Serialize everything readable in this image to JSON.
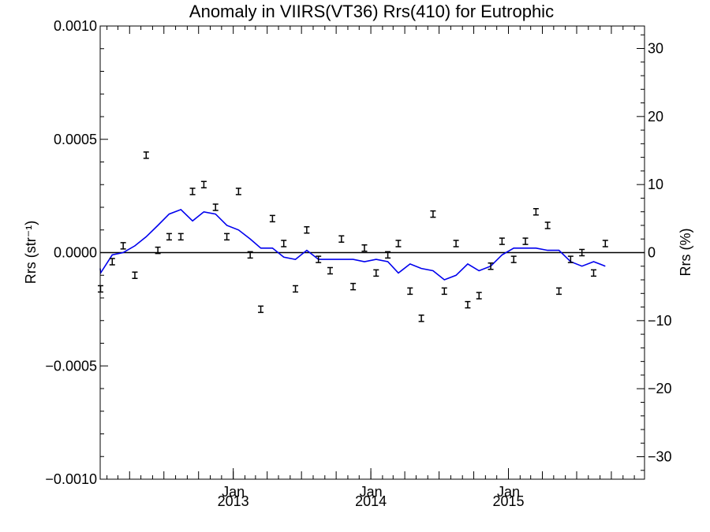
{
  "chart_data": {
    "type": "line",
    "title": "Anomaly in VIIRS(VT36) Rrs(410) for Eutrophic",
    "ylabel_left": "Rrs (str⁻¹)",
    "ylabel_right": "Rrs (%)",
    "xlabel": "",
    "x_range": [
      "2012-01-14",
      "2015-12-28"
    ],
    "ylim_left": [
      -0.001,
      0.001
    ],
    "ylim_right": [
      -33.3,
      33.3
    ],
    "x_ticks": [
      {
        "date": "2013-01-01",
        "month": "Jan",
        "year": "2013"
      },
      {
        "date": "2014-01-01",
        "month": "Jan",
        "year": "2014"
      },
      {
        "date": "2015-01-01",
        "month": "Jan",
        "year": "2015"
      }
    ],
    "y_ticks_left": [
      "0.0010",
      "0.0005",
      "0.0000",
      "−0.0005",
      "−0.0010"
    ],
    "y_tick_values_left": [
      0.001,
      0.0005,
      0.0,
      -0.0005,
      -0.001
    ],
    "y_ticks_right": [
      "30",
      "20",
      "10",
      "0",
      "−10",
      "−20",
      "−30"
    ],
    "y_tick_values_right": [
      30,
      20,
      10,
      0,
      -10,
      -20,
      -30
    ],
    "zero_line": true,
    "colors": {
      "line": "#0000ee",
      "points": "#000000",
      "zero_line": "#000000"
    },
    "series": [
      {
        "type": "errorbar",
        "points": [
          {
            "x": "2012-01-15",
            "y": -0.00016
          },
          {
            "x": "2012-02-15",
            "y": -4e-05
          },
          {
            "x": "2012-03-15",
            "y": 3e-05
          },
          {
            "x": "2012-04-15",
            "y": -0.0001
          },
          {
            "x": "2012-05-15",
            "y": 0.00043
          },
          {
            "x": "2012-06-15",
            "y": 1e-05
          },
          {
            "x": "2012-07-15",
            "y": 7e-05
          },
          {
            "x": "2012-08-15",
            "y": 7e-05
          },
          {
            "x": "2012-09-15",
            "y": 0.00027
          },
          {
            "x": "2012-10-15",
            "y": 0.0003
          },
          {
            "x": "2012-11-15",
            "y": 0.0002
          },
          {
            "x": "2012-12-15",
            "y": 7e-05
          },
          {
            "x": "2013-01-15",
            "y": 0.00027
          },
          {
            "x": "2013-02-15",
            "y": -1e-05
          },
          {
            "x": "2013-03-15",
            "y": -0.00025
          },
          {
            "x": "2013-04-15",
            "y": 0.00015
          },
          {
            "x": "2013-05-15",
            "y": 4e-05
          },
          {
            "x": "2013-06-15",
            "y": -0.00016
          },
          {
            "x": "2013-07-15",
            "y": 0.0001
          },
          {
            "x": "2013-08-15",
            "y": -3e-05
          },
          {
            "x": "2013-09-15",
            "y": -8e-05
          },
          {
            "x": "2013-10-15",
            "y": 6e-05
          },
          {
            "x": "2013-11-15",
            "y": -0.00015
          },
          {
            "x": "2013-12-15",
            "y": 2e-05
          },
          {
            "x": "2014-01-15",
            "y": -9e-05
          },
          {
            "x": "2014-02-15",
            "y": -1e-05
          },
          {
            "x": "2014-03-15",
            "y": 4e-05
          },
          {
            "x": "2014-04-15",
            "y": -0.00017
          },
          {
            "x": "2014-05-15",
            "y": -0.00029
          },
          {
            "x": "2014-06-15",
            "y": 0.00017
          },
          {
            "x": "2014-07-15",
            "y": -0.00017
          },
          {
            "x": "2014-08-15",
            "y": 4e-05
          },
          {
            "x": "2014-09-15",
            "y": -0.00023
          },
          {
            "x": "2014-10-15",
            "y": -0.00019
          },
          {
            "x": "2014-11-15",
            "y": -6e-05
          },
          {
            "x": "2014-12-15",
            "y": 5e-05
          },
          {
            "x": "2015-01-15",
            "y": -3e-05
          },
          {
            "x": "2015-02-15",
            "y": 5e-05
          },
          {
            "x": "2015-03-15",
            "y": 0.00018
          },
          {
            "x": "2015-04-15",
            "y": 0.00012
          },
          {
            "x": "2015-05-15",
            "y": -0.00017
          },
          {
            "x": "2015-06-15",
            "y": -3e-05
          },
          {
            "x": "2015-07-15",
            "y": 0.0
          },
          {
            "x": "2015-08-15",
            "y": -9e-05
          },
          {
            "x": "2015-09-15",
            "y": 4e-05
          }
        ]
      },
      {
        "type": "line",
        "points": [
          {
            "x": "2012-01-01",
            "y": -7e-05
          },
          {
            "x": "2012-01-15",
            "y": -9e-05
          },
          {
            "x": "2012-02-15",
            "y": -1e-05
          },
          {
            "x": "2012-03-15",
            "y": 0.0
          },
          {
            "x": "2012-04-15",
            "y": 3e-05
          },
          {
            "x": "2012-05-15",
            "y": 7e-05
          },
          {
            "x": "2012-06-15",
            "y": 0.00012
          },
          {
            "x": "2012-07-15",
            "y": 0.00017
          },
          {
            "x": "2012-08-15",
            "y": 0.00019
          },
          {
            "x": "2012-09-15",
            "y": 0.00014
          },
          {
            "x": "2012-10-15",
            "y": 0.00018
          },
          {
            "x": "2012-11-15",
            "y": 0.00017
          },
          {
            "x": "2012-12-15",
            "y": 0.00012
          },
          {
            "x": "2013-01-15",
            "y": 0.0001
          },
          {
            "x": "2013-02-15",
            "y": 6e-05
          },
          {
            "x": "2013-03-15",
            "y": 2e-05
          },
          {
            "x": "2013-04-15",
            "y": 2e-05
          },
          {
            "x": "2013-05-15",
            "y": -2e-05
          },
          {
            "x": "2013-06-15",
            "y": -3e-05
          },
          {
            "x": "2013-07-15",
            "y": 1e-05
          },
          {
            "x": "2013-08-15",
            "y": -3e-05
          },
          {
            "x": "2013-09-15",
            "y": -3e-05
          },
          {
            "x": "2013-10-15",
            "y": -3e-05
          },
          {
            "x": "2013-11-15",
            "y": -3e-05
          },
          {
            "x": "2013-12-15",
            "y": -4e-05
          },
          {
            "x": "2014-01-15",
            "y": -3e-05
          },
          {
            "x": "2014-02-15",
            "y": -4e-05
          },
          {
            "x": "2014-03-15",
            "y": -9e-05
          },
          {
            "x": "2014-04-15",
            "y": -5e-05
          },
          {
            "x": "2014-05-15",
            "y": -7e-05
          },
          {
            "x": "2014-06-15",
            "y": -8e-05
          },
          {
            "x": "2014-07-15",
            "y": -0.00012
          },
          {
            "x": "2014-08-15",
            "y": -0.0001
          },
          {
            "x": "2014-09-15",
            "y": -5e-05
          },
          {
            "x": "2014-10-15",
            "y": -8e-05
          },
          {
            "x": "2014-11-15",
            "y": -6e-05
          },
          {
            "x": "2014-12-15",
            "y": -1e-05
          },
          {
            "x": "2015-01-15",
            "y": 2e-05
          },
          {
            "x": "2015-02-15",
            "y": 2e-05
          },
          {
            "x": "2015-03-15",
            "y": 2e-05
          },
          {
            "x": "2015-04-15",
            "y": 1e-05
          },
          {
            "x": "2015-05-15",
            "y": 1e-05
          },
          {
            "x": "2015-06-15",
            "y": -4e-05
          },
          {
            "x": "2015-07-15",
            "y": -6e-05
          },
          {
            "x": "2015-08-15",
            "y": -4e-05
          },
          {
            "x": "2015-09-15",
            "y": -6e-05
          }
        ]
      }
    ]
  }
}
